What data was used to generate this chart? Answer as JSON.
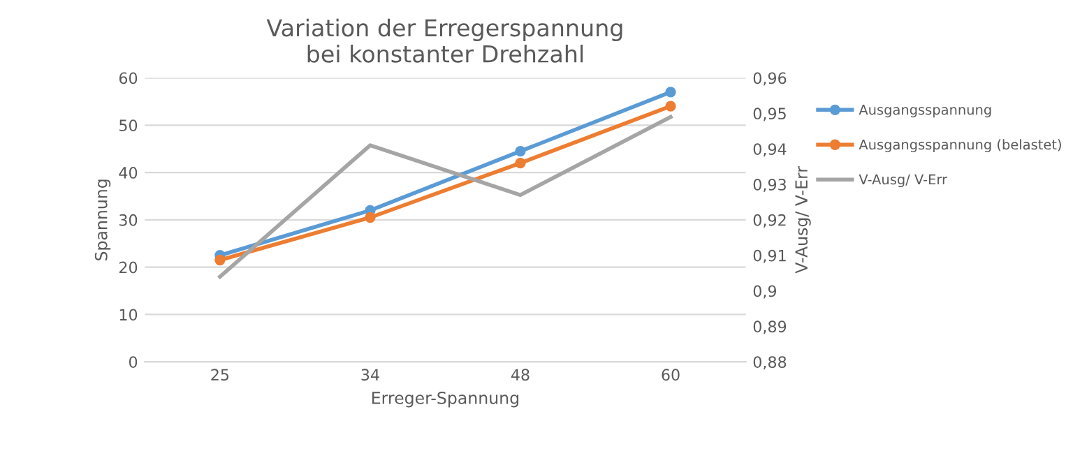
{
  "chart_data": {
    "type": "line",
    "title": "Variation der Erregerspannung\nbei konstanter Drehzahl",
    "xlabel": "Erreger-Spannung",
    "ylabel": "Spannung",
    "y2label": "V-Ausg/ V-Err",
    "categories": [
      "25",
      "34",
      "48",
      "60"
    ],
    "series": [
      {
        "name": "Ausgangsspannung",
        "color": "#5b9bd5",
        "marker": "circle",
        "values": [
          22.5,
          32,
          44.5,
          57
        ]
      },
      {
        "name": "Ausgangsspannung (belastet)",
        "color": "#ed7d31",
        "marker": "circle",
        "values": [
          21.5,
          30.5,
          42,
          54
        ]
      },
      {
        "name": "V-Ausg/ V-Err",
        "color": "#a5a5a5",
        "marker": "none",
        "axis": "y2",
        "values": [
          0.904,
          0.941,
          0.927,
          0.949
        ]
      }
    ],
    "ylim": [
      0,
      60
    ],
    "yticks": [
      0,
      10,
      20,
      30,
      40,
      50,
      60
    ],
    "y2lim": [
      0.88,
      0.96
    ],
    "y2ticks": [
      {
        "value": 0.88,
        "label": "0,88"
      },
      {
        "value": 0.89,
        "label": "0,89"
      },
      {
        "value": 0.9,
        "label": "0,9"
      },
      {
        "value": 0.91,
        "label": "0,91"
      },
      {
        "value": 0.92,
        "label": "0,92"
      },
      {
        "value": 0.93,
        "label": "0,93"
      },
      {
        "value": 0.94,
        "label": "0,94"
      },
      {
        "value": 0.95,
        "label": "0,95"
      },
      {
        "value": 0.96,
        "label": "0,96"
      }
    ],
    "grid": "y",
    "legend": "right",
    "line_style": "solid"
  }
}
